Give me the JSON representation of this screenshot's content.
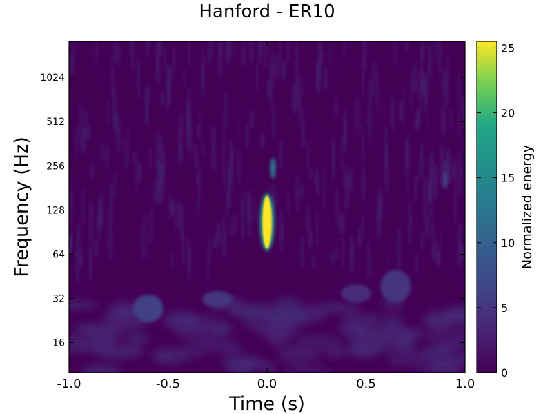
{
  "chart_data": {
    "type": "heatmap",
    "title": "Hanford - ER10",
    "xlabel": "Time (s)",
    "ylabel": "Frequency (Hz)",
    "colorbar_label": "Normalized energy",
    "xlim": [
      -1.0,
      1.0
    ],
    "x_ticks": [
      "-1.0",
      "-0.5",
      "0.0",
      "0.5",
      "1.0"
    ],
    "x_tick_values": [
      -1.0,
      -0.5,
      0.0,
      0.5,
      1.0
    ],
    "y_scale": "log2",
    "ylim": [
      10,
      1800
    ],
    "y_ticks": [
      "16",
      "32",
      "64",
      "128",
      "256",
      "512",
      "1024"
    ],
    "y_tick_values": [
      16,
      32,
      64,
      128,
      256,
      512,
      1024
    ],
    "colorbar_range": [
      0,
      25.5
    ],
    "colorbar_ticks": [
      "0",
      "5",
      "10",
      "15",
      "20",
      "25"
    ],
    "colorbar_tick_values": [
      0,
      5,
      10,
      15,
      20,
      25
    ],
    "colormap": "viridis",
    "grid": false,
    "features": [
      {
        "time": 0.0,
        "freq_low": 70,
        "freq_high": 160,
        "energy": 25.5
      },
      {
        "time": 0.03,
        "freq_low": 210,
        "freq_high": 290,
        "energy": 12
      },
      {
        "time": -0.6,
        "freq_low": 22,
        "freq_high": 34,
        "energy": 6
      },
      {
        "time": -0.25,
        "freq_low": 28,
        "freq_high": 36,
        "energy": 5
      },
      {
        "time": 0.65,
        "freq_low": 30,
        "freq_high": 50,
        "energy": 5
      },
      {
        "time": 0.9,
        "freq_low": 180,
        "freq_high": 230,
        "energy": 6
      },
      {
        "time": -1.0,
        "freq_low": 64,
        "freq_high": 90,
        "energy": 4
      },
      {
        "time": 0.45,
        "freq_low": 30,
        "freq_high": 40,
        "energy": 4
      }
    ]
  }
}
